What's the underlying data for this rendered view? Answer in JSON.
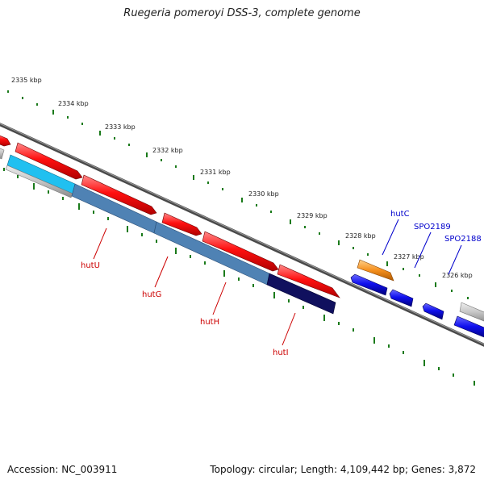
{
  "title": "Ruegeria pomeroyi DSS-3, complete genome",
  "footer": {
    "accession": "Accession: NC_003911",
    "summary": "Topology: circular; Length: 4,109,442 bp; Genes: 3,872"
  },
  "scale_labels": [
    "2335 kbp",
    "2334 kbp",
    "2333 kbp",
    "2332 kbp",
    "2331 kbp",
    "2330 kbp",
    "2329 kbp",
    "2328 kbp",
    "2327 kbp",
    "2326 kbp"
  ],
  "gene_labels": [
    {
      "text": "hutU",
      "color": "#cc0000"
    },
    {
      "text": "hutG",
      "color": "#cc0000"
    },
    {
      "text": "hutH",
      "color": "#cc0000"
    },
    {
      "text": "hutI",
      "color": "#cc0000"
    },
    {
      "text": "hutC",
      "color": "#0000cc"
    },
    {
      "text": "SPO2189",
      "color": "#0000cc"
    },
    {
      "text": "SPO2188",
      "color": "#0000cc"
    }
  ],
  "colors": {
    "backbone": "#7a7a7a",
    "cds_red": "#ff0000",
    "cds_blue": "#1010ee",
    "cds_orange": "#f5901e",
    "cds_grey": "#c8c8c8",
    "steelblue": "#4f82b4",
    "navy": "#10105e",
    "cyan": "#20c0f0",
    "tick_green": "#1a7a1a"
  }
}
